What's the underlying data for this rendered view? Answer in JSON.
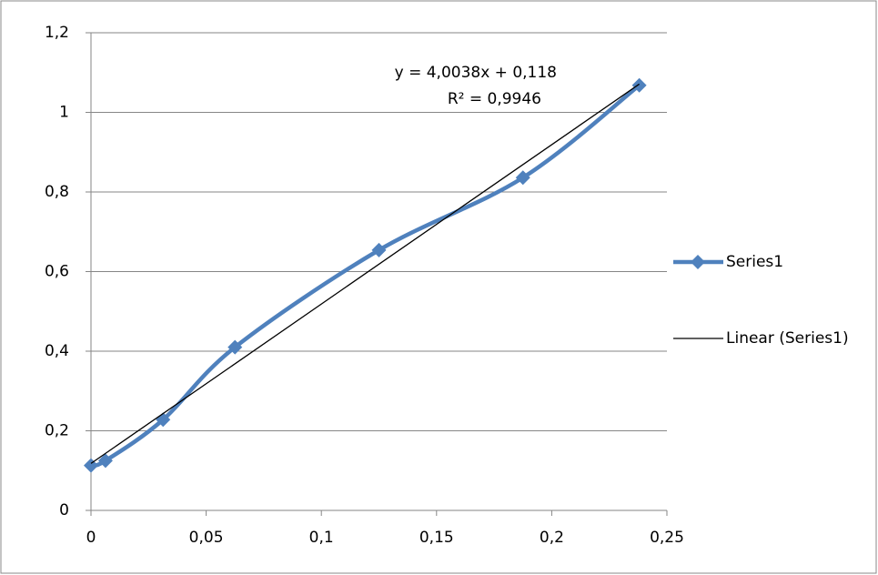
{
  "chart_data": {
    "type": "scatter",
    "series": [
      {
        "name": "Series1",
        "color": "#4f81bd",
        "x": [
          0,
          0.0063,
          0.0313,
          0.0625,
          0.125,
          0.1875,
          0.238
        ],
        "values": [
          0.113,
          0.125,
          0.228,
          0.41,
          0.654,
          0.836,
          1.068
        ]
      },
      {
        "name": "Linear (Series1)",
        "color": "#000000",
        "x": [
          0,
          0.238
        ],
        "values": [
          0.118,
          1.071
        ]
      }
    ],
    "annotations": [
      "y = 4,0038x + 0,118",
      "R² = 0,9946"
    ],
    "xlim": [
      0,
      0.25
    ],
    "xticks": [
      0,
      {
        "value": 0.05,
        "label": "0,05"
      },
      {
        "value": 0.1,
        "label": "0,1"
      },
      {
        "value": 0.15,
        "label": "0,15"
      },
      {
        "value": 0.2,
        "label": "0,2"
      },
      {
        "value": 0.25,
        "label": "0,25"
      }
    ],
    "ylim": [
      0,
      1.2
    ],
    "yticks": [
      0,
      {
        "value": 0.2,
        "label": "0,2"
      },
      {
        "value": 0.4,
        "label": "0,4"
      },
      {
        "value": 0.6,
        "label": "0,6"
      },
      {
        "value": 0.8,
        "label": "0,8"
      },
      1,
      {
        "value": 1.2,
        "label": "1,2"
      }
    ],
    "grid": true,
    "legend": "right"
  }
}
